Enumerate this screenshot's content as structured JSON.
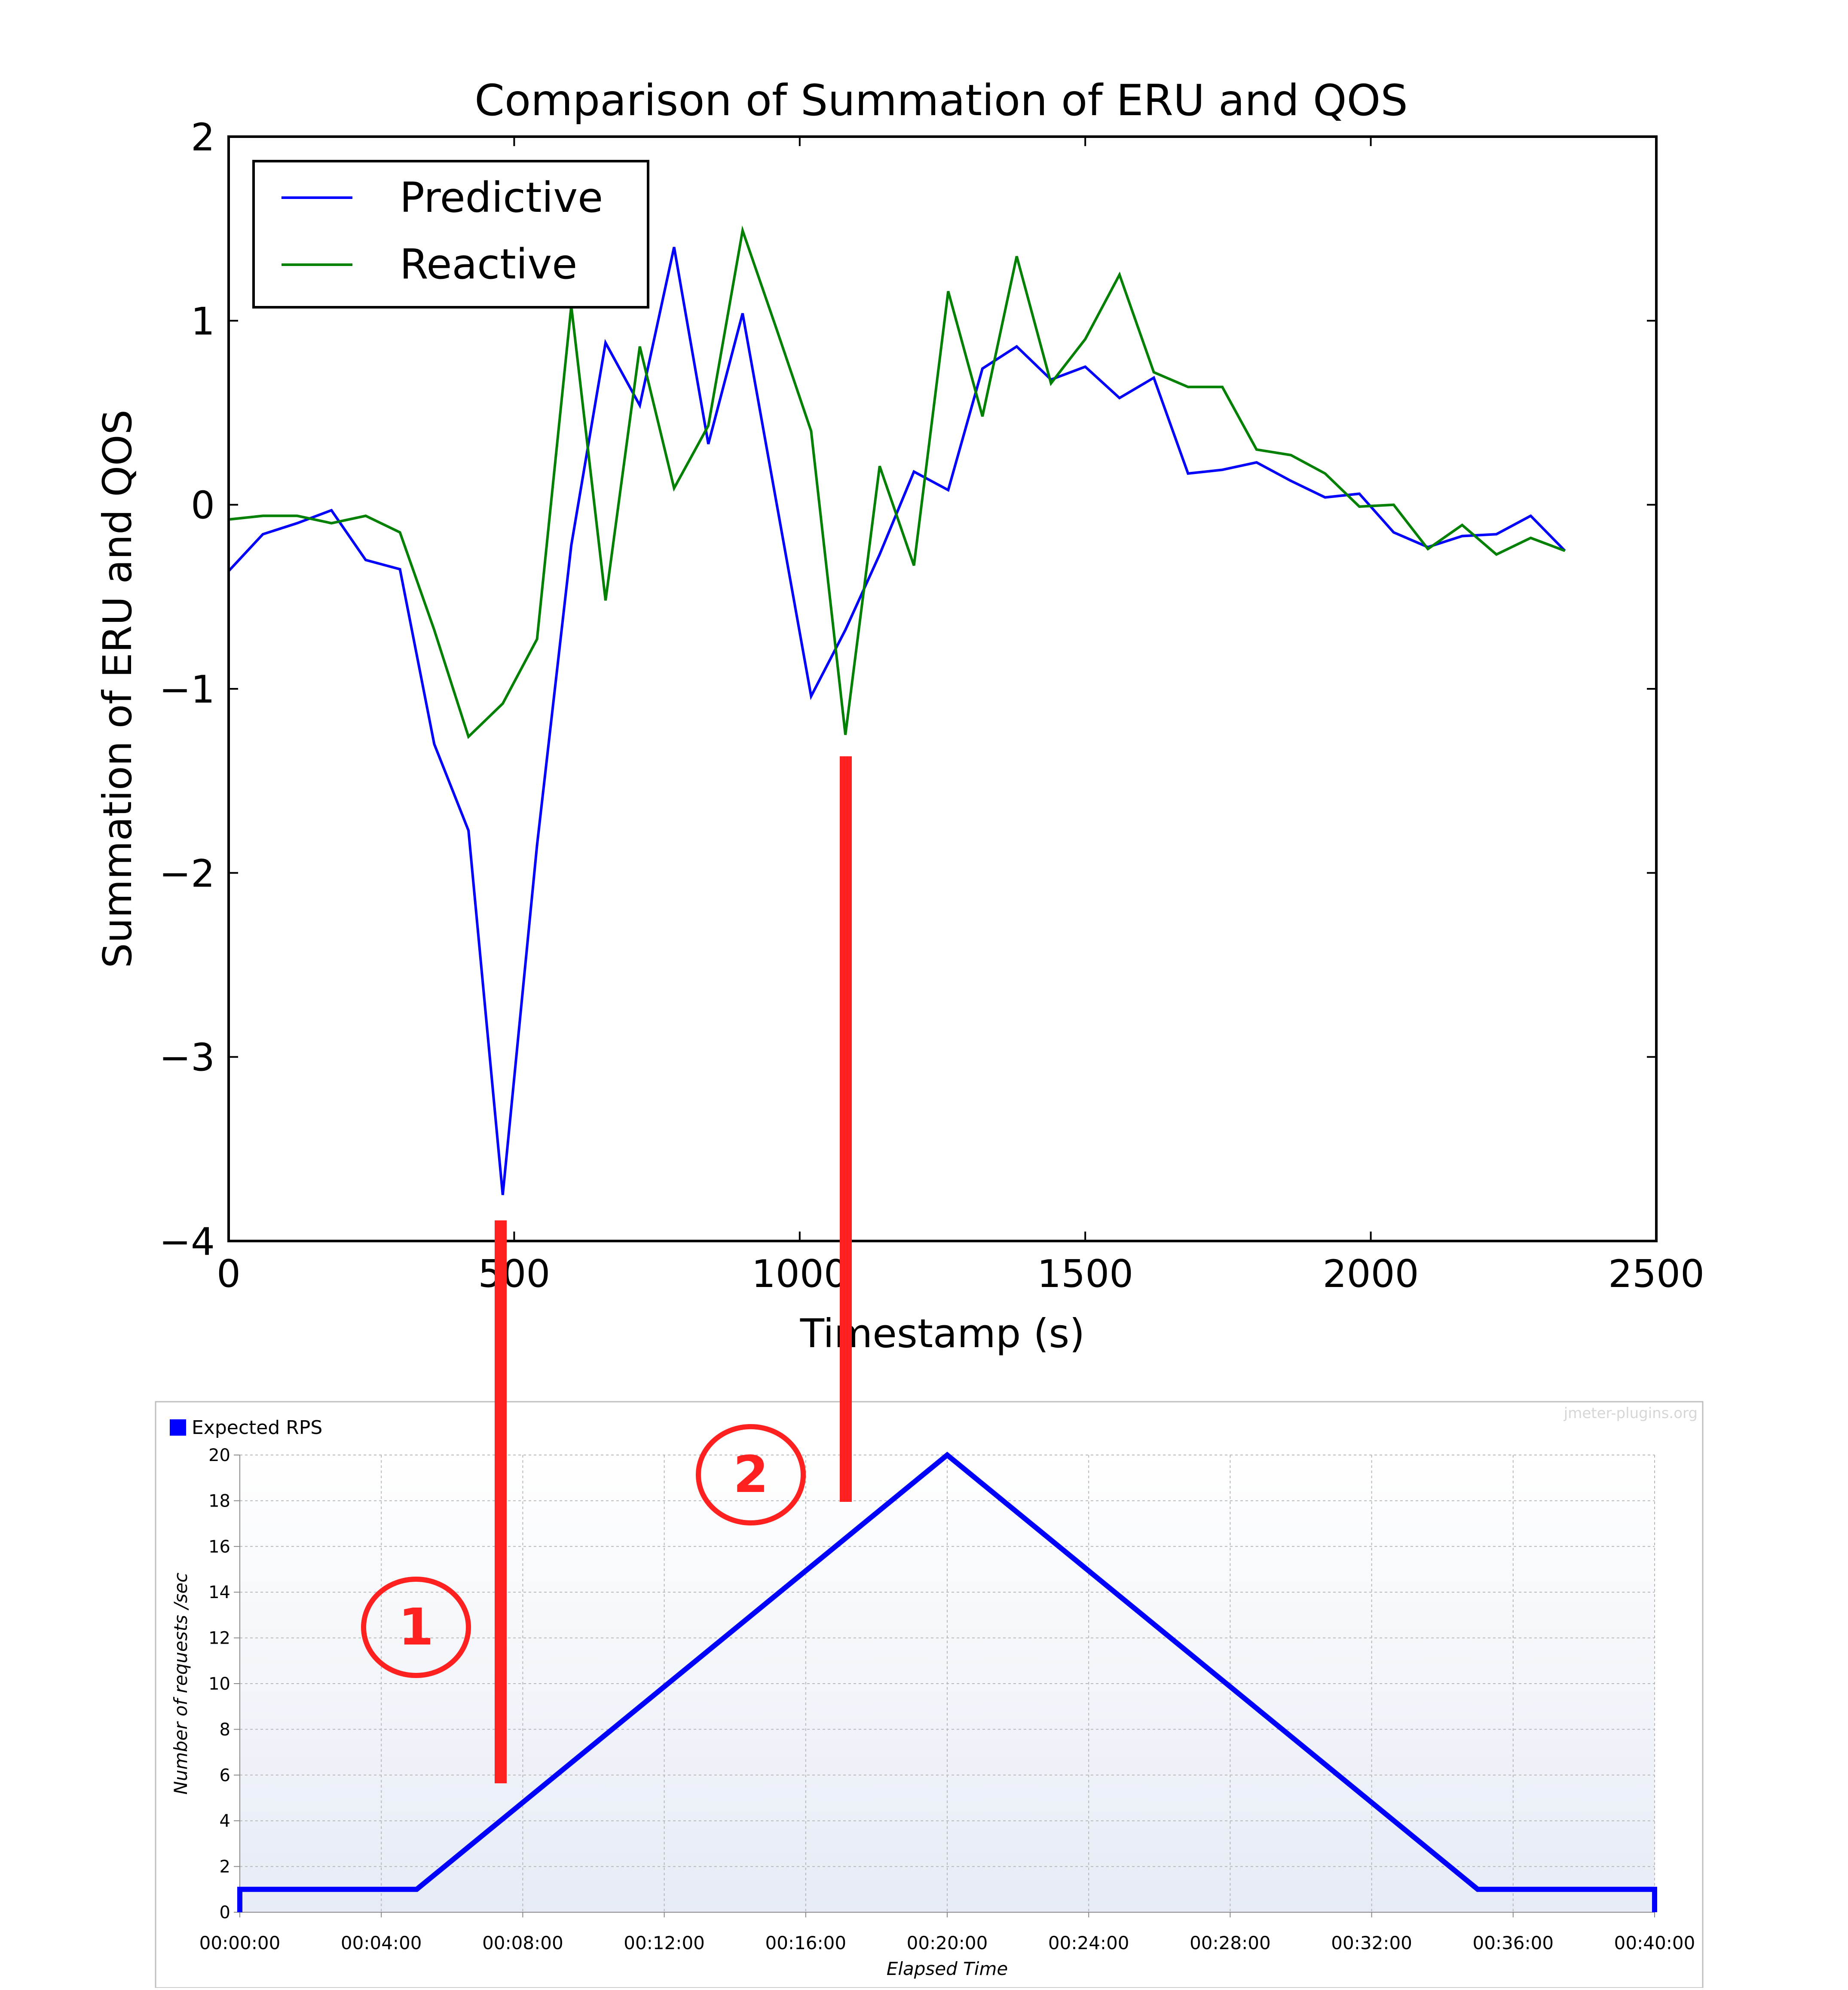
{
  "chart_data": [
    {
      "type": "line",
      "title": "Comparison of Summation of ERU and QOS",
      "xlabel": "Timestamp (s)",
      "ylabel": "Summation of ERU and QOS",
      "xlim": [
        0,
        2500
      ],
      "ylim": [
        -4,
        2
      ],
      "xticks": [
        0,
        500,
        1000,
        1500,
        2000,
        2500
      ],
      "yticks": [
        2,
        1,
        0,
        -1,
        -2,
        -3,
        -4
      ],
      "xtick_labels": [
        "0",
        "500",
        "1000",
        "1500",
        "2000",
        "2500"
      ],
      "ytick_labels": [
        "2",
        "1",
        "0",
        "−1",
        "−2",
        "−3",
        "−4"
      ],
      "grid": false,
      "legend_position": "top-left",
      "series": [
        {
          "name": "Predictive",
          "color": "#0000ff",
          "x": [
            0,
            60,
            120,
            180,
            240,
            300,
            360,
            420,
            480,
            540,
            600,
            660,
            720,
            780,
            840,
            900,
            960,
            1020,
            1080,
            1140,
            1200,
            1260,
            1320,
            1380,
            1440,
            1500,
            1560,
            1620,
            1680,
            1740,
            1800,
            1860,
            1920,
            1980,
            2040,
            2100,
            2160,
            2220,
            2280,
            2340
          ],
          "y": [
            -0.36,
            -0.16,
            -0.1,
            -0.03,
            -0.3,
            -0.35,
            -1.3,
            -1.77,
            -3.75,
            -1.85,
            -0.22,
            0.88,
            0.54,
            1.4,
            0.33,
            1.04,
            0.0,
            -1.04,
            -0.68,
            -0.27,
            0.18,
            0.08,
            0.74,
            0.86,
            0.68,
            0.75,
            0.58,
            0.69,
            0.17,
            0.19,
            0.23,
            0.13,
            0.04,
            0.06,
            -0.15,
            -0.23,
            -0.17,
            -0.16,
            -0.06,
            -0.25
          ]
        },
        {
          "name": "Reactive",
          "color": "#008000",
          "x": [
            0,
            60,
            120,
            180,
            240,
            300,
            360,
            420,
            480,
            540,
            600,
            660,
            720,
            780,
            840,
            900,
            960,
            1020,
            1080,
            1140,
            1200,
            1260,
            1320,
            1380,
            1440,
            1500,
            1560,
            1620,
            1680,
            1740,
            1800,
            1860,
            1920,
            1980,
            2040,
            2100,
            2160,
            2220,
            2280,
            2340
          ],
          "y": [
            -0.08,
            -0.06,
            -0.06,
            -0.1,
            -0.06,
            -0.15,
            -0.68,
            -1.26,
            -1.08,
            -0.73,
            1.08,
            -0.52,
            0.86,
            0.09,
            0.43,
            1.49,
            0.95,
            0.4,
            -1.25,
            0.21,
            -0.33,
            1.16,
            0.48,
            1.35,
            0.66,
            0.9,
            1.25,
            0.72,
            0.64,
            0.64,
            0.3,
            0.27,
            0.17,
            -0.01,
            0.0,
            -0.24,
            -0.11,
            -0.27,
            -0.18,
            -0.25
          ]
        }
      ]
    },
    {
      "type": "line",
      "title": "",
      "xlabel": "Elapsed Time",
      "ylabel": "Number of requests /sec",
      "watermark": "jmeter-plugins.org",
      "ylim": [
        0,
        20
      ],
      "yticks": [
        0,
        2,
        4,
        6,
        8,
        10,
        12,
        14,
        16,
        18,
        20
      ],
      "ytick_labels": [
        "0",
        "2",
        "4",
        "6",
        "8",
        "10",
        "12",
        "14",
        "16",
        "18",
        "20"
      ],
      "xlim": [
        0,
        40
      ],
      "xticks": [
        0,
        4,
        8,
        12,
        16,
        20,
        24,
        28,
        32,
        36,
        40
      ],
      "xtick_labels": [
        "00:00:00",
        "00:04:00",
        "00:08:00",
        "00:12:00",
        "00:16:00",
        "00:20:00",
        "00:24:00",
        "00:28:00",
        "00:32:00",
        "00:36:00",
        "00:40:00"
      ],
      "grid": true,
      "legend_position": "top-left",
      "series": [
        {
          "name": "Expected RPS",
          "color": "#0000ff",
          "x": [
            0,
            0,
            5,
            20,
            35,
            40,
            40
          ],
          "y": [
            0,
            1,
            1,
            20,
            1,
            1,
            0
          ]
        }
      ]
    }
  ],
  "annotations": {
    "color": "#ff2020",
    "markers": [
      {
        "label": "1",
        "top_x_seconds": 480
      },
      {
        "label": "2",
        "top_x_seconds": 1080
      }
    ]
  }
}
